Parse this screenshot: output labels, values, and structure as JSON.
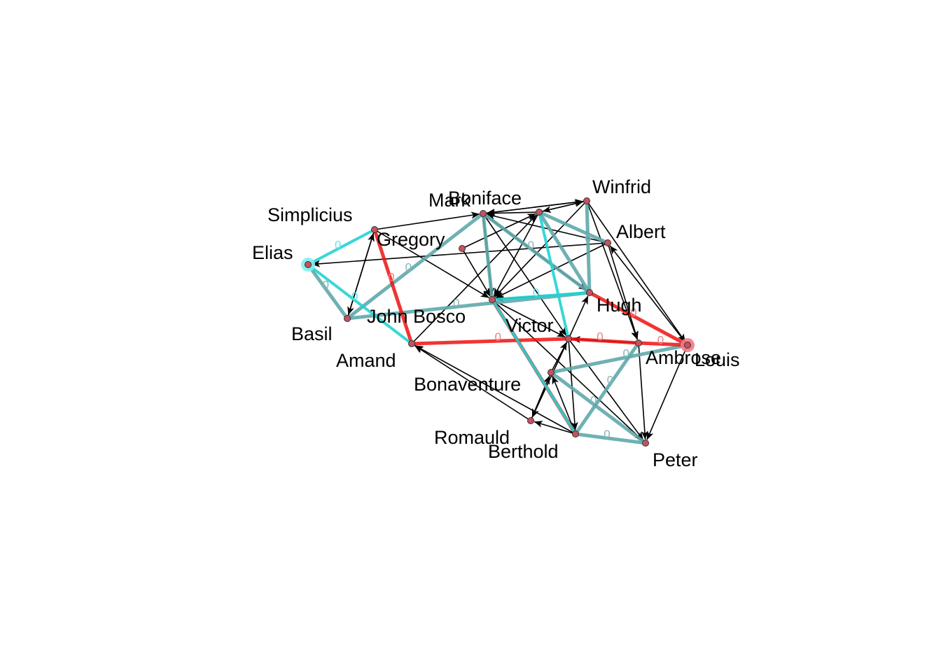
{
  "nodes": [
    {
      "id": "Elias",
      "label": "Elias",
      "highlight": "cyan"
    },
    {
      "id": "Simplicius",
      "label": "Simplicius"
    },
    {
      "id": "Gregory",
      "label": "Gregory"
    },
    {
      "id": "Basil",
      "label": "Basil"
    },
    {
      "id": "Amand",
      "label": "Amand"
    },
    {
      "id": "JohnBosco",
      "label": "John Bosco"
    },
    {
      "id": "Mark",
      "label": "Mark"
    },
    {
      "id": "Boniface",
      "label": "Boniface"
    },
    {
      "id": "Winfrid",
      "label": "Winfrid"
    },
    {
      "id": "Albert",
      "label": "Albert"
    },
    {
      "id": "Hugh",
      "label": "Hugh"
    },
    {
      "id": "Victor",
      "label": "Victor"
    },
    {
      "id": "Ambrose",
      "label": "Ambrose"
    },
    {
      "id": "Louis",
      "label": "Louis",
      "highlight": "red"
    },
    {
      "id": "Bonaventure",
      "label": "Bonaventure"
    },
    {
      "id": "Romauld",
      "label": "Romauld"
    },
    {
      "id": "Berthold",
      "label": "Berthold"
    },
    {
      "id": "Peter",
      "label": "Peter"
    }
  ],
  "edges": [
    {
      "s": "Elias",
      "t": "Simplicius",
      "style": "cyan",
      "label": "0"
    },
    {
      "s": "Elias",
      "t": "Basil",
      "style": "teal",
      "label": "0"
    },
    {
      "s": "Elias",
      "t": "Amand",
      "style": "cyan",
      "label": "0"
    },
    {
      "s": "Albert",
      "t": "Elias",
      "style": "black"
    },
    {
      "s": "Simplicius",
      "t": "Mark",
      "style": "black"
    },
    {
      "s": "Simplicius",
      "t": "Basil",
      "style": "black"
    },
    {
      "s": "Simplicius",
      "t": "Amand",
      "style": "red",
      "label": "0"
    },
    {
      "s": "Simplicius",
      "t": "JohnBosco",
      "style": "black"
    },
    {
      "s": "Basil",
      "t": "Simplicius",
      "style": "black"
    },
    {
      "s": "Basil",
      "t": "Mark",
      "style": "teal",
      "label": "0"
    },
    {
      "s": "Basil",
      "t": "Hugh",
      "style": "teal",
      "label": "0"
    },
    {
      "s": "Gregory",
      "t": "Boniface",
      "style": "black"
    },
    {
      "s": "Amand",
      "t": "Boniface",
      "style": "black"
    },
    {
      "s": "Victor",
      "t": "Amand",
      "style": "red",
      "label": "0"
    },
    {
      "s": "Berthold",
      "t": "Amand",
      "style": "black"
    },
    {
      "s": "Mark",
      "t": "Winfrid",
      "style": "black"
    },
    {
      "s": "Winfrid",
      "t": "Mark",
      "style": "black"
    },
    {
      "s": "Boniface",
      "t": "Winfrid",
      "style": "black"
    },
    {
      "s": "Winfrid",
      "t": "Boniface",
      "style": "black"
    },
    {
      "s": "Boniface",
      "t": "Albert",
      "style": "teal"
    },
    {
      "s": "Boniface",
      "t": "Hugh",
      "style": "teal"
    },
    {
      "s": "Boniface",
      "t": "JohnBosco",
      "style": "black"
    },
    {
      "s": "Boniface",
      "t": "Victor",
      "style": "cyan"
    },
    {
      "s": "Boniface",
      "t": "Mark",
      "style": "black"
    },
    {
      "s": "Mark",
      "t": "JohnBosco",
      "style": "black"
    },
    {
      "s": "Mark",
      "t": "Hugh",
      "style": "black"
    },
    {
      "s": "Mark",
      "t": "Hugh",
      "style": "teal",
      "label": "0"
    },
    {
      "s": "Mark",
      "t": "JohnBosco",
      "style": "teal"
    },
    {
      "s": "Mark",
      "t": "Victor",
      "style": "black"
    },
    {
      "s": "Winfrid",
      "t": "Hugh",
      "style": "teal",
      "label": "0"
    },
    {
      "s": "Winfrid",
      "t": "JohnBosco",
      "style": "black"
    },
    {
      "s": "Winfrid",
      "t": "Ambrose",
      "style": "black"
    },
    {
      "s": "Winfrid",
      "t": "Louis",
      "style": "black"
    },
    {
      "s": "Albert",
      "t": "Mark",
      "style": "black"
    },
    {
      "s": "Albert",
      "t": "JohnBosco",
      "style": "black"
    },
    {
      "s": "Albert",
      "t": "Ambrose",
      "style": "black"
    },
    {
      "s": "Louis",
      "t": "Albert",
      "style": "black"
    },
    {
      "s": "Hugh",
      "t": "JohnBosco",
      "style": "black"
    },
    {
      "s": "JohnBosco",
      "t": "Hugh",
      "style": "cyan",
      "label": "0"
    },
    {
      "s": "Hugh",
      "t": "Louis",
      "style": "red",
      "label": "0"
    },
    {
      "s": "Victor",
      "t": "Hugh",
      "style": "black"
    },
    {
      "s": "JohnBosco",
      "t": "Victor",
      "style": "black"
    },
    {
      "s": "JohnBosco",
      "t": "Berthold",
      "style": "red"
    },
    {
      "s": "JohnBosco",
      "t": "Berthold",
      "style": "cyan"
    },
    {
      "s": "JohnBosco",
      "t": "Peter",
      "style": "black"
    },
    {
      "s": "Gregory",
      "t": "JohnBosco",
      "style": "black"
    },
    {
      "s": "Victor",
      "t": "Ambrose",
      "style": "red",
      "label": "0"
    },
    {
      "s": "Ambrose",
      "t": "Victor",
      "style": "black"
    },
    {
      "s": "Ambrose",
      "t": "Louis",
      "style": "red",
      "label": "0"
    },
    {
      "s": "Louis",
      "t": "Bonaventure",
      "style": "teal",
      "label": "0"
    },
    {
      "s": "Louis",
      "t": "Peter",
      "style": "black"
    },
    {
      "s": "Victor",
      "t": "Romauld",
      "style": "black"
    },
    {
      "s": "Victor",
      "t": "Berthold",
      "style": "black"
    },
    {
      "s": "Bonaventure",
      "t": "Victor",
      "style": "black"
    },
    {
      "s": "Bonaventure",
      "t": "Peter",
      "style": "teal",
      "label": "0"
    },
    {
      "s": "Bonaventure",
      "t": "Romauld",
      "style": "black"
    },
    {
      "s": "Romauld",
      "t": "Bonaventure",
      "style": "black"
    },
    {
      "s": "Berthold",
      "t": "Bonaventure",
      "style": "black"
    },
    {
      "s": "Ambrose",
      "t": "Berthold",
      "style": "teal",
      "label": "0"
    },
    {
      "s": "Berthold",
      "t": "Romauld",
      "style": "black"
    },
    {
      "s": "Berthold",
      "t": "Peter",
      "style": "teal",
      "label": "0"
    },
    {
      "s": "Romauld",
      "t": "Amand",
      "style": "black"
    },
    {
      "s": "Ambrose",
      "t": "Peter",
      "style": "black"
    },
    {
      "s": "Victor",
      "t": "Peter",
      "style": "black"
    }
  ],
  "colors": {
    "node_fill": "#c8515f",
    "node_stroke": "#333333",
    "edge_black": "#000000",
    "edge_red": "#ee1111",
    "edge_cyan": "#22d3d3",
    "edge_teal": "#5fa8ab",
    "halo_cyan": "#7ff0f0",
    "halo_red": "#f47b86",
    "edge_label_red": "#f08080",
    "edge_label_cyan": "#66e5e5",
    "edge_label_teal": "#8ab4b8"
  }
}
